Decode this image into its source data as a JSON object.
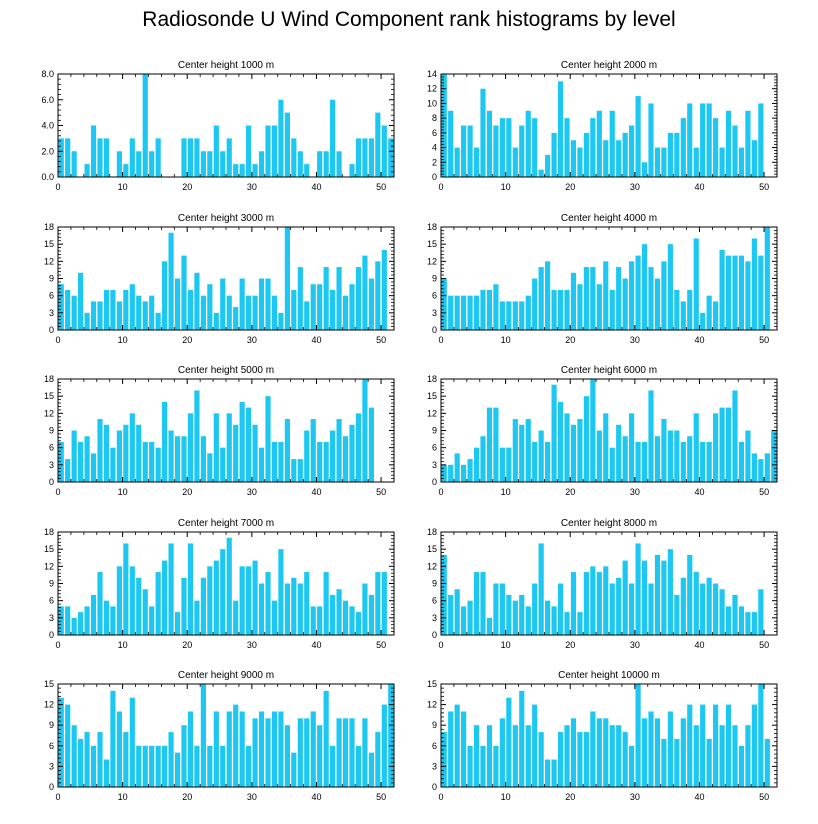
{
  "title": "Radiosonde U Wind Component rank histograms by level",
  "colors": {
    "bar": "#1CC8F2",
    "axis": "#000000",
    "background": "#ffffff"
  },
  "chart_data": [
    {
      "type": "bar",
      "title": "Center height 1000 m",
      "x": [
        0,
        1,
        2,
        3,
        4,
        5,
        6,
        7,
        8,
        9,
        10,
        11,
        12,
        13,
        14,
        15,
        16,
        17,
        18,
        19,
        20,
        21,
        22,
        23,
        24,
        25,
        26,
        27,
        28,
        29,
        30,
        31,
        32,
        33,
        34,
        35,
        36,
        37,
        38,
        39,
        40,
        41,
        42,
        43,
        44,
        45,
        46,
        47,
        48,
        49,
        50,
        51
      ],
      "values": [
        3,
        3,
        2,
        0,
        1,
        4,
        3,
        3,
        0,
        2,
        1,
        3,
        2,
        8,
        2,
        3,
        0,
        0,
        0,
        3,
        3,
        3,
        2,
        2,
        4,
        2,
        3,
        1,
        1,
        4,
        1,
        2,
        4,
        4,
        6,
        5,
        3,
        2,
        1,
        0,
        2,
        2,
        6,
        2,
        0,
        1,
        3,
        3,
        3,
        5,
        4,
        3
      ],
      "xlim": [
        0,
        52
      ],
      "ylim": [
        0,
        8
      ],
      "xticks": [
        0,
        10,
        20,
        30,
        40,
        50
      ],
      "xtick_labels": [
        "0",
        "10",
        "20",
        "30",
        "40",
        "50"
      ],
      "yticks": [
        0,
        2,
        4,
        6,
        8
      ],
      "ytick_labels": [
        "0.0",
        "2.0",
        "4.0",
        "6.0",
        "8.0"
      ]
    },
    {
      "type": "bar",
      "title": "Center height 2000 m",
      "x": [
        0,
        1,
        2,
        3,
        4,
        5,
        6,
        7,
        8,
        9,
        10,
        11,
        12,
        13,
        14,
        15,
        16,
        17,
        18,
        19,
        20,
        21,
        22,
        23,
        24,
        25,
        26,
        27,
        28,
        29,
        30,
        31,
        32,
        33,
        34,
        35,
        36,
        37,
        38,
        39,
        40,
        41,
        42,
        43,
        44,
        45,
        46,
        47,
        48,
        49,
        50,
        51
      ],
      "values": [
        14,
        9,
        4,
        7,
        7,
        4,
        12,
        9,
        7,
        8,
        8,
        4,
        7,
        9,
        8,
        1,
        3,
        6,
        13,
        8,
        5,
        4,
        6,
        8,
        9,
        5,
        9,
        5,
        6,
        7,
        11,
        2,
        10,
        4,
        4,
        6,
        6,
        8,
        10,
        4,
        10,
        10,
        8,
        4,
        9,
        7,
        4,
        9,
        5,
        10,
        0,
        0
      ],
      "xlim": [
        0,
        52
      ],
      "ylim": [
        0,
        14
      ],
      "xticks": [
        0,
        10,
        20,
        30,
        40,
        50
      ],
      "xtick_labels": [
        "0",
        "10",
        "20",
        "30",
        "40",
        "50"
      ],
      "yticks": [
        0,
        2,
        4,
        6,
        8,
        10,
        12,
        14
      ],
      "ytick_labels": [
        "0",
        "2",
        "4",
        "6",
        "8",
        "10",
        "12",
        "14"
      ]
    },
    {
      "type": "bar",
      "title": "Center height 3000 m",
      "x": [
        0,
        1,
        2,
        3,
        4,
        5,
        6,
        7,
        8,
        9,
        10,
        11,
        12,
        13,
        14,
        15,
        16,
        17,
        18,
        19,
        20,
        21,
        22,
        23,
        24,
        25,
        26,
        27,
        28,
        29,
        30,
        31,
        32,
        33,
        34,
        35,
        36,
        37,
        38,
        39,
        40,
        41,
        42,
        43,
        44,
        45,
        46,
        47,
        48,
        49,
        50,
        51
      ],
      "values": [
        8,
        7,
        6,
        10,
        3,
        5,
        5,
        7,
        7,
        5,
        7,
        8,
        6,
        5,
        6,
        3,
        12,
        17,
        9,
        13,
        7,
        10,
        6,
        8,
        3,
        9,
        6,
        4,
        9,
        6,
        6,
        9,
        9,
        6,
        3,
        18,
        7,
        11,
        5,
        8,
        8,
        11,
        7,
        11,
        6,
        8,
        11,
        13,
        9,
        12,
        14,
        0
      ],
      "xlim": [
        0,
        52
      ],
      "ylim": [
        0,
        18
      ],
      "xticks": [
        0,
        10,
        20,
        30,
        40,
        50
      ],
      "xtick_labels": [
        "0",
        "10",
        "20",
        "30",
        "40",
        "50"
      ],
      "yticks": [
        0,
        3,
        6,
        9,
        12,
        15,
        18
      ],
      "ytick_labels": [
        "0",
        "3",
        "6",
        "9",
        "12",
        "15",
        "18"
      ]
    },
    {
      "type": "bar",
      "title": "Center height 4000 m",
      "x": [
        0,
        1,
        2,
        3,
        4,
        5,
        6,
        7,
        8,
        9,
        10,
        11,
        12,
        13,
        14,
        15,
        16,
        17,
        18,
        19,
        20,
        21,
        22,
        23,
        24,
        25,
        26,
        27,
        28,
        29,
        30,
        31,
        32,
        33,
        34,
        35,
        36,
        37,
        38,
        39,
        40,
        41,
        42,
        43,
        44,
        45,
        46,
        47,
        48,
        49,
        50,
        51
      ],
      "values": [
        9,
        6,
        6,
        6,
        6,
        6,
        7,
        7,
        8,
        5,
        5,
        5,
        5,
        6,
        9,
        11,
        12,
        7,
        7,
        7,
        10,
        8,
        11,
        11,
        8,
        12,
        7,
        11,
        9,
        12,
        13,
        15,
        11,
        9,
        12,
        15,
        7,
        5,
        7,
        16,
        3,
        6,
        5,
        14,
        13,
        13,
        13,
        12,
        16,
        13,
        18,
        0
      ],
      "xlim": [
        0,
        52
      ],
      "ylim": [
        0,
        18
      ],
      "xticks": [
        0,
        10,
        20,
        30,
        40,
        50
      ],
      "xtick_labels": [
        "0",
        "10",
        "20",
        "30",
        "40",
        "50"
      ],
      "yticks": [
        0,
        3,
        6,
        9,
        12,
        15,
        18
      ],
      "ytick_labels": [
        "0",
        "3",
        "6",
        "9",
        "12",
        "15",
        "18"
      ]
    },
    {
      "type": "bar",
      "title": "Center height 5000 m",
      "x": [
        0,
        1,
        2,
        3,
        4,
        5,
        6,
        7,
        8,
        9,
        10,
        11,
        12,
        13,
        14,
        15,
        16,
        17,
        18,
        19,
        20,
        21,
        22,
        23,
        24,
        25,
        26,
        27,
        28,
        29,
        30,
        31,
        32,
        33,
        34,
        35,
        36,
        37,
        38,
        39,
        40,
        41,
        42,
        43,
        44,
        45,
        46,
        47,
        48,
        49,
        50,
        51
      ],
      "values": [
        7,
        4,
        9,
        7,
        8,
        5,
        11,
        10,
        6,
        9,
        10,
        12,
        10,
        7,
        7,
        6,
        14,
        9,
        8,
        8,
        12,
        16,
        8,
        5,
        12,
        6,
        12,
        10,
        14,
        13,
        10,
        6,
        15,
        7,
        7,
        11,
        4,
        4,
        9,
        11,
        7,
        7,
        9,
        11,
        8,
        10,
        12,
        18,
        13,
        0,
        0,
        0
      ],
      "xlim": [
        0,
        52
      ],
      "ylim": [
        0,
        18
      ],
      "xticks": [
        0,
        10,
        20,
        30,
        40,
        50
      ],
      "xtick_labels": [
        "0",
        "10",
        "20",
        "30",
        "40",
        "50"
      ],
      "yticks": [
        0,
        3,
        6,
        9,
        12,
        15,
        18
      ],
      "ytick_labels": [
        "0",
        "3",
        "6",
        "9",
        "12",
        "15",
        "18"
      ]
    },
    {
      "type": "bar",
      "title": "Center height 6000 m",
      "x": [
        0,
        1,
        2,
        3,
        4,
        5,
        6,
        7,
        8,
        9,
        10,
        11,
        12,
        13,
        14,
        15,
        16,
        17,
        18,
        19,
        20,
        21,
        22,
        23,
        24,
        25,
        26,
        27,
        28,
        29,
        30,
        31,
        32,
        33,
        34,
        35,
        36,
        37,
        38,
        39,
        40,
        41,
        42,
        43,
        44,
        45,
        46,
        47,
        48,
        49,
        50,
        51
      ],
      "values": [
        3,
        3,
        5,
        3,
        4,
        6,
        8,
        13,
        13,
        6,
        6,
        11,
        10,
        11,
        7,
        9,
        7,
        17,
        14,
        12,
        10,
        11,
        15,
        18,
        9,
        12,
        6,
        10,
        8,
        12,
        7,
        7,
        16,
        8,
        11,
        9,
        9,
        7,
        8,
        12,
        7,
        7,
        12,
        13,
        13,
        16,
        7,
        9,
        5,
        4,
        5,
        9
      ],
      "xlim": [
        0,
        52
      ],
      "ylim": [
        0,
        18
      ],
      "xticks": [
        0,
        10,
        20,
        30,
        40,
        50
      ],
      "xtick_labels": [
        "0",
        "10",
        "20",
        "30",
        "40",
        "50"
      ],
      "yticks": [
        0,
        3,
        6,
        9,
        12,
        15,
        18
      ],
      "ytick_labels": [
        "0",
        "3",
        "6",
        "9",
        "12",
        "15",
        "18"
      ]
    },
    {
      "type": "bar",
      "title": "Center height 7000 m",
      "x": [
        0,
        1,
        2,
        3,
        4,
        5,
        6,
        7,
        8,
        9,
        10,
        11,
        12,
        13,
        14,
        15,
        16,
        17,
        18,
        19,
        20,
        21,
        22,
        23,
        24,
        25,
        26,
        27,
        28,
        29,
        30,
        31,
        32,
        33,
        34,
        35,
        36,
        37,
        38,
        39,
        40,
        41,
        42,
        43,
        44,
        45,
        46,
        47,
        48,
        49,
        50,
        51
      ],
      "values": [
        5,
        5,
        3,
        4,
        5,
        7,
        11,
        6,
        5,
        12,
        16,
        12,
        10,
        8,
        5,
        11,
        13,
        16,
        4,
        10,
        16,
        6,
        10,
        12,
        13,
        15,
        17,
        6,
        12,
        12,
        13,
        9,
        11,
        6,
        15,
        9,
        10,
        9,
        11,
        5,
        5,
        11,
        7,
        8,
        6,
        5,
        4,
        9,
        7,
        11,
        11,
        0
      ],
      "xlim": [
        0,
        52
      ],
      "ylim": [
        0,
        18
      ],
      "xticks": [
        0,
        10,
        20,
        30,
        40,
        50
      ],
      "xtick_labels": [
        "0",
        "10",
        "20",
        "30",
        "40",
        "50"
      ],
      "yticks": [
        0,
        3,
        6,
        9,
        12,
        15,
        18
      ],
      "ytick_labels": [
        "0",
        "3",
        "6",
        "9",
        "12",
        "15",
        "18"
      ]
    },
    {
      "type": "bar",
      "title": "Center height 8000 m",
      "x": [
        0,
        1,
        2,
        3,
        4,
        5,
        6,
        7,
        8,
        9,
        10,
        11,
        12,
        13,
        14,
        15,
        16,
        17,
        18,
        19,
        20,
        21,
        22,
        23,
        24,
        25,
        26,
        27,
        28,
        29,
        30,
        31,
        32,
        33,
        34,
        35,
        36,
        37,
        38,
        39,
        40,
        41,
        42,
        43,
        44,
        45,
        46,
        47,
        48,
        49,
        50,
        51
      ],
      "values": [
        14,
        7,
        8,
        5,
        6,
        11,
        11,
        3,
        9,
        9,
        7,
        6,
        7,
        5,
        9,
        16,
        6,
        5,
        9,
        4,
        11,
        4,
        11,
        12,
        11,
        12,
        9,
        10,
        13,
        9,
        16,
        13,
        9,
        14,
        13,
        15,
        7,
        10,
        14,
        11,
        9,
        10,
        9,
        8,
        5,
        7,
        5,
        4,
        4,
        8,
        0,
        0
      ],
      "xlim": [
        0,
        52
      ],
      "ylim": [
        0,
        18
      ],
      "xticks": [
        0,
        10,
        20,
        30,
        40,
        50
      ],
      "xtick_labels": [
        "0",
        "10",
        "20",
        "30",
        "40",
        "50"
      ],
      "yticks": [
        0,
        3,
        6,
        9,
        12,
        15,
        18
      ],
      "ytick_labels": [
        "0",
        "3",
        "6",
        "9",
        "12",
        "15",
        "18"
      ]
    },
    {
      "type": "bar",
      "title": "Center height 9000 m",
      "x": [
        0,
        1,
        2,
        3,
        4,
        5,
        6,
        7,
        8,
        9,
        10,
        11,
        12,
        13,
        14,
        15,
        16,
        17,
        18,
        19,
        20,
        21,
        22,
        23,
        24,
        25,
        26,
        27,
        28,
        29,
        30,
        31,
        32,
        33,
        34,
        35,
        36,
        37,
        38,
        39,
        40,
        41,
        42,
        43,
        44,
        45,
        46,
        47,
        48,
        49,
        50,
        51
      ],
      "values": [
        13,
        12,
        9,
        7,
        8,
        6,
        8,
        4,
        14,
        11,
        8,
        13,
        6,
        6,
        6,
        6,
        6,
        8,
        5,
        9,
        11,
        6,
        15,
        6,
        11,
        6,
        11,
        12,
        11,
        6,
        10,
        11,
        10,
        11,
        11,
        9,
        5,
        10,
        10,
        11,
        9,
        14,
        6,
        10,
        10,
        10,
        6,
        10,
        5,
        8,
        12,
        15
      ],
      "xlim": [
        0,
        52
      ],
      "ylim": [
        0,
        15
      ],
      "xticks": [
        0,
        10,
        20,
        30,
        40,
        50
      ],
      "xtick_labels": [
        "0",
        "10",
        "20",
        "30",
        "40",
        "50"
      ],
      "yticks": [
        0,
        3,
        6,
        9,
        12,
        15
      ],
      "ytick_labels": [
        "0",
        "3",
        "6",
        "9",
        "12",
        "15"
      ]
    },
    {
      "type": "bar",
      "title": "Center height 10000 m",
      "x": [
        0,
        1,
        2,
        3,
        4,
        5,
        6,
        7,
        8,
        9,
        10,
        11,
        12,
        13,
        14,
        15,
        16,
        17,
        18,
        19,
        20,
        21,
        22,
        23,
        24,
        25,
        26,
        27,
        28,
        29,
        30,
        31,
        32,
        33,
        34,
        35,
        36,
        37,
        38,
        39,
        40,
        41,
        42,
        43,
        44,
        45,
        46,
        47,
        48,
        49,
        50,
        51
      ],
      "values": [
        8,
        11,
        12,
        11,
        6,
        9,
        6,
        9,
        6,
        10,
        13,
        9,
        14,
        9,
        12,
        8,
        4,
        4,
        8,
        9,
        10,
        8,
        8,
        11,
        10,
        10,
        9,
        9,
        8,
        6,
        15,
        10,
        11,
        10,
        7,
        11,
        7,
        10,
        12,
        9,
        12,
        7,
        12,
        9,
        12,
        9,
        6,
        9,
        12,
        15,
        7,
        0
      ],
      "xlim": [
        0,
        52
      ],
      "ylim": [
        0,
        15
      ],
      "xticks": [
        0,
        10,
        20,
        30,
        40,
        50
      ],
      "xtick_labels": [
        "0",
        "10",
        "20",
        "30",
        "40",
        "50"
      ],
      "yticks": [
        0,
        3,
        6,
        9,
        12,
        15
      ],
      "ytick_labels": [
        "0",
        "3",
        "6",
        "9",
        "12",
        "15"
      ]
    }
  ]
}
